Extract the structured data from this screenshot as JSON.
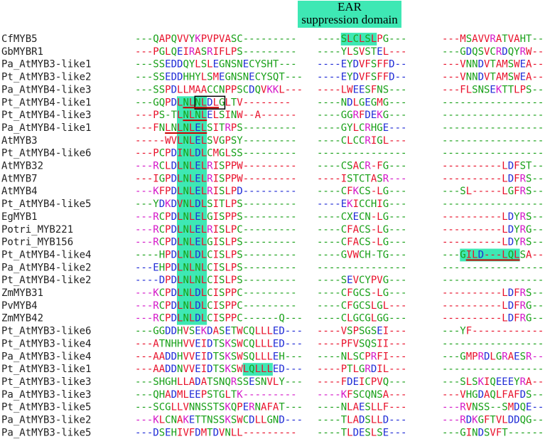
{
  "header": {
    "title": "EAR",
    "subtitle": "suppression domain"
  },
  "rows": [
    {
      "name": "CfMYB5",
      "segments": [
        "---QAPQVVYKPVPVASC---------",
        "----SLCLSLPG---",
        "---MSAVVRATVAHT---"
      ]
    },
    {
      "name": "GbMYBR1",
      "segments": [
        "---PGLQEIRASRIFLPS---------",
        "----YLSVSTEL---",
        "---GDQSVCRDQYRW---"
      ]
    },
    {
      "name": "Pa_AtMYB3-like1",
      "segments": [
        "---SSEDDQYLSLEGNSNECYSHT---",
        "----EYDVFSFFD--",
        "---VNNDVTAMSWEA---"
      ]
    },
    {
      "name": "Pt_AtMYB3-like2",
      "segments": [
        "---SSEDDHHYLSMEGNSNECYSQT---",
        "----EYDVFSFFD--",
        "---VNNDVTAMSWEA---"
      ]
    },
    {
      "name": "Pa_AtMYB4-like3",
      "segments": [
        "---SSPDLLMAACCNPPSCDQVKKL---",
        "----LWEESFNS---",
        "---FLSNSEKTTLPS---"
      ]
    },
    {
      "name": "Pt_AtMYB4-like1",
      "segments": [
        "---GQPDLNLNLDLGLTV--------",
        "----NDLGEGMG---",
        "------------------"
      ]
    },
    {
      "name": "Pt_AtMYB4-like3",
      "segments": [
        "---PS-TLNLNLELSINW--A------",
        "----GGRFDEKG---",
        "------------------"
      ]
    },
    {
      "name": "Pa_AtMYB4-like1",
      "segments": [
        "---FNLNLNLELSITRPS---------",
        "----GYLCRHGE---",
        "------------------"
      ]
    },
    {
      "name": "AtMYB3",
      "segments": [
        "-----WVLNLELSVGPSY---------",
        "----CLCCRIGL---",
        "------------------"
      ]
    },
    {
      "name": "Pt_AtMYB4-like6",
      "segments": [
        "---PCPDINLDLCMGLSS---------",
        "---------------",
        "------------------"
      ]
    },
    {
      "name": "AtMYB32",
      "segments": [
        "---RCLDLNLELRISPPW---------",
        "----CSACR-FG---",
        "----------LDFST---"
      ]
    },
    {
      "name": "AtMYB7",
      "segments": [
        "---IGPDLNLELRISPPW---------",
        "----ISTCTASR---",
        "----------LDFRS---"
      ]
    },
    {
      "name": "AtMYB4",
      "segments": [
        "---KFPDLNLELRISLPD---------",
        "----CFKCS-LG---",
        "---SL-----LGFRS---"
      ]
    },
    {
      "name": "Pt_AtMYB4-like5",
      "segments": [
        "---YDKDVNLDLSITLPS---------",
        "----EKICCHIG---",
        "------------------"
      ]
    },
    {
      "name": "EgMYB1",
      "segments": [
        "---RCPDLNLELGISPPS---------",
        "----CXECN-LG---",
        "----------LDYRS---"
      ]
    },
    {
      "name": "Potri_MYB221",
      "segments": [
        "---RCPDLNLELRISLPC---------",
        "----CFACS-LG---",
        "----------LDYRG---"
      ]
    },
    {
      "name": "Potri_MYB156",
      "segments": [
        "---RCPDLNLELGISLPS---------",
        "----CFACS-LG---",
        "----------LDYRS---"
      ]
    },
    {
      "name": "Pt_AtMYB4-like4",
      "segments": [
        "----HPDLNLDLCISLPS---------",
        "----GVWCH-TG---",
        "---GILD---LQLSA---"
      ]
    },
    {
      "name": "Pa_AtMYB4-like2",
      "segments": [
        "---EHPDLNLNLCISLPS---------",
        "---------------",
        "------------------"
      ]
    },
    {
      "name": "Pt_AtMYB4-like2",
      "segments": [
        "----DPDLNLNLCISLPS---------",
        "----SEVCYPVG---",
        "------------------"
      ]
    },
    {
      "name": "ZmMYB31",
      "segments": [
        "---KCPDLNLDLCISPPC---------",
        "----CFGCS-LG---",
        "----------LDFRS---"
      ]
    },
    {
      "name": "PvMYB4",
      "segments": [
        "---RCPDLNLDLCISPPC---------",
        "----CFGCSLGL---",
        "----------LDFRG---"
      ]
    },
    {
      "name": "ZmMYB42",
      "segments": [
        "---RCPDLNLDLCISPPC------Q---",
        "----CLGCGLGG---",
        "----------LDFRG---"
      ]
    },
    {
      "name": "Pt_AtMYB3-like6",
      "segments": [
        "---GGDDHVSEKDASETWCQLLLED---",
        "----VSPSGSEI---",
        "---YF-------------"
      ]
    },
    {
      "name": "Pt_AtMYB3-like4",
      "segments": [
        "---ATNHHVVEIDTSKSWCQLLLED---",
        "----PFVSQSII---",
        "------------------"
      ]
    },
    {
      "name": "Pa_AtMYB3-like4",
      "segments": [
        "---AADDHVVEIDTSKSWSQLLLEH---",
        "----NLSCPRFI---",
        "---GMPRDLGRAESR---"
      ]
    },
    {
      "name": "Pt_AtMYB3-like1",
      "segments": [
        "---AADDNVVEIDTSKSWLQLLLED---",
        "----PTLGRDIL---",
        "------------------"
      ]
    },
    {
      "name": "Pt_AtMYB3-like3",
      "segments": [
        "---SHGHLLADATSNQRSSESNVLY---",
        "----FDEICPVQ---",
        "---SLSKIQEEEYRA---"
      ]
    },
    {
      "name": "Pa_AtMYB3-like3",
      "segments": [
        "---QHADMLEEPSTGLTK---------",
        "----KFSCQNSA---",
        "---VHGDAQLFAFDS---"
      ]
    },
    {
      "name": "Pt_AtMYB3-like5",
      "segments": [
        "---SCGLLVNNSSTSKQPERNAFAT---",
        "----NLAESLLF---",
        "---RVNSS--SMDQE---"
      ]
    },
    {
      "name": "Pa_AtMYB3-like2",
      "segments": [
        "---KLCNAKETTNSSKSWCDLLGND---",
        "----TLADSLLD---",
        "---RDKGFTVLDDQG---"
      ]
    },
    {
      "name": "Pa_AtMYB3-like5",
      "segments": [
        "---DSEHIVFDMTDVNLL---------",
        "----TLDESLSE---",
        "---GINDSVFT-------"
      ]
    }
  ]
}
